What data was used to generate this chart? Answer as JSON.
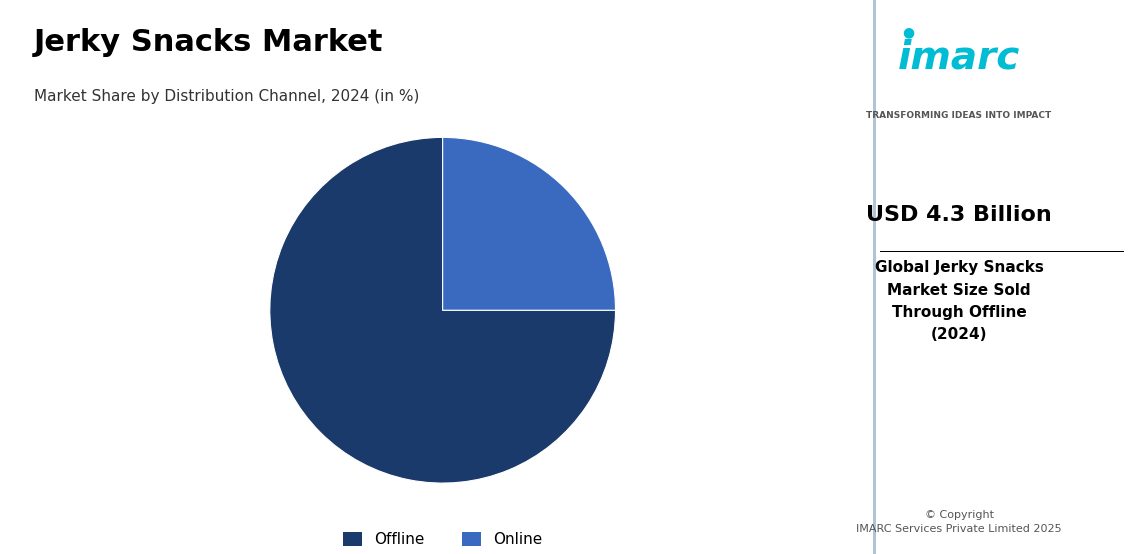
{
  "title": "Jerky Snacks Market",
  "subtitle": "Market Share by Distribution Channel, 2024 (in %)",
  "slices": [
    75,
    25
  ],
  "labels": [
    "Offline",
    "Online"
  ],
  "colors": [
    "#1a3a6b",
    "#3a6abf"
  ],
  "bg_color_left": "#d6e4f0",
  "bg_color_right": "#ffffff",
  "usd_value": "USD 4.3 Billion",
  "usd_desc": "Global Jerky Snacks\nMarket Size Sold\nThrough Offline\n(2024)",
  "copyright": "© Copyright\nIMARC Services Private Limited 2025",
  "imarc_tagline": "TRANSFORMING IDEAS INTO IMPACT",
  "startangle": 90,
  "legend_labels": [
    "Offline",
    "Online"
  ],
  "legend_colors": [
    "#1a3a6b",
    "#3a6abf"
  ]
}
